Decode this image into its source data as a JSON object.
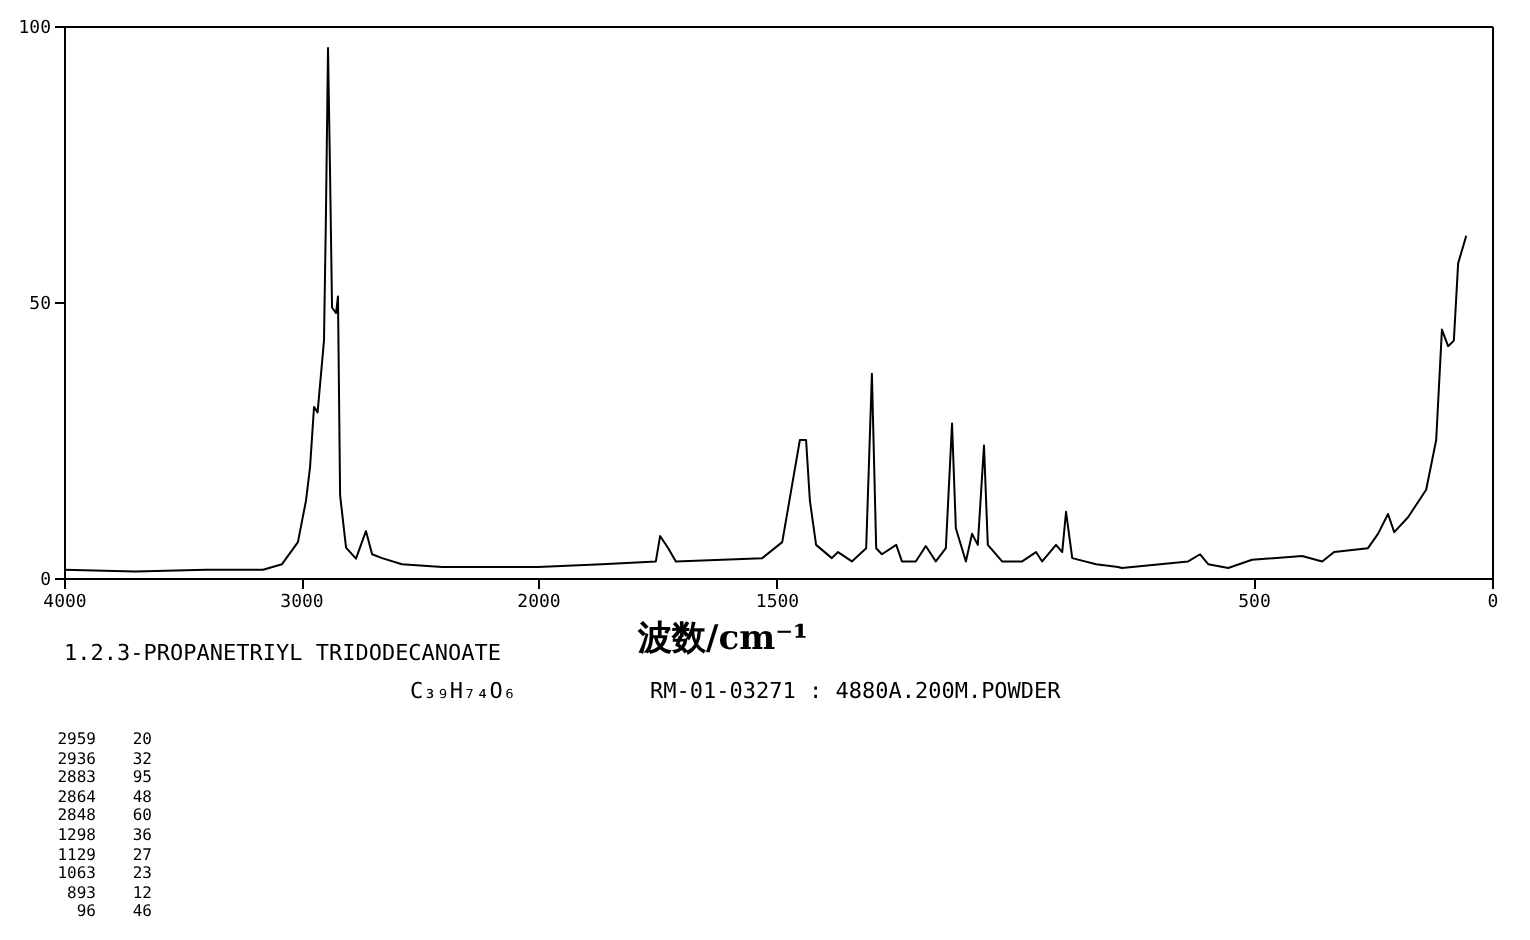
{
  "chart_data": [
    {
      "type": "line",
      "title": "1.2.3-PROPANETRIYL TRIDODECANOATE",
      "subtitle": "C₃₉H₇₄O₆",
      "x": [
        4000,
        3700,
        3400,
        3160,
        3080,
        3013,
        2979,
        2962,
        2945,
        2930,
        2903,
        2895,
        2886,
        2878,
        2869,
        2852,
        2844,
        2835,
        2810,
        2768,
        2726,
        2700,
        2658,
        2574,
        2405,
        2200,
        2000
      ],
      "series": [
        {
          "color": "#000000",
          "values": [
            1.5,
            1.2,
            1.5,
            1.5,
            2.5,
            6.5,
            14,
            20,
            31,
            30,
            43,
            65,
            96,
            75,
            49,
            48,
            51,
            15,
            5.5,
            3.5,
            8.5,
            4.3,
            3.6,
            2.5,
            2,
            2,
            2
          ]
        }
      ],
      "xlim": [
        4000,
        2000
      ],
      "xticks": [
        4000,
        3000,
        2000
      ],
      "ylim": [
        0,
        100
      ],
      "yticks": [
        0,
        50,
        100
      ],
      "annotations": [
        "RM-01-03271 : 4880A.200M.POWDER",
        "2959 20",
        "2936 32",
        "2883 95",
        "2864 48",
        "2848 60",
        "1298 36",
        "1129 27",
        "1063 23",
        "893 12",
        "96 46"
      ]
    },
    {
      "type": "line",
      "xlabel": "波数/cm⁻¹",
      "x": [
        2000,
        1866,
        1753,
        1744,
        1727,
        1711,
        1530,
        1488,
        1467,
        1451,
        1438,
        1430,
        1417,
        1384,
        1371,
        1342,
        1312,
        1300,
        1291,
        1279,
        1249,
        1237,
        1208,
        1187,
        1166,
        1145,
        1132,
        1124,
        1103,
        1090,
        1078,
        1065,
        1057,
        1027,
        985,
        956,
        943,
        914,
        901,
        893,
        880,
        830,
        784,
        776,
        637,
        612,
        595,
        553,
        503,
        398,
        356,
        331,
        260,
        239,
        218,
        205,
        176,
        138,
        117,
        105,
        92,
        80,
        71,
        54
      ],
      "series": [
        {
          "color": "#000000",
          "values": [
            2,
            2.5,
            3,
            7.6,
            5.4,
            3,
            3.6,
            6.5,
            17,
            25,
            25,
            14,
            6,
            3.6,
            4.7,
            3,
            5.4,
            37,
            5.4,
            4.3,
            6,
            3,
            3,
            5.8,
            3,
            5.4,
            28,
            9,
            3,
            8,
            6,
            24,
            6,
            3,
            3,
            4.7,
            3,
            6,
            4.7,
            12,
            3.6,
            2.5,
            2,
            1.8,
            3,
            4.3,
            2.5,
            1.8,
            3.3,
            4,
            3,
            4.7,
            5.4,
            8,
            11.6,
            8.3,
            11,
            16,
            25,
            45,
            42,
            43,
            57,
            62
          ]
        }
      ],
      "xlim": [
        2000,
        0
      ],
      "xticks": [
        1500,
        500,
        0
      ],
      "ylim": [
        0,
        100
      ],
      "tick_labels": "x"
    }
  ]
}
